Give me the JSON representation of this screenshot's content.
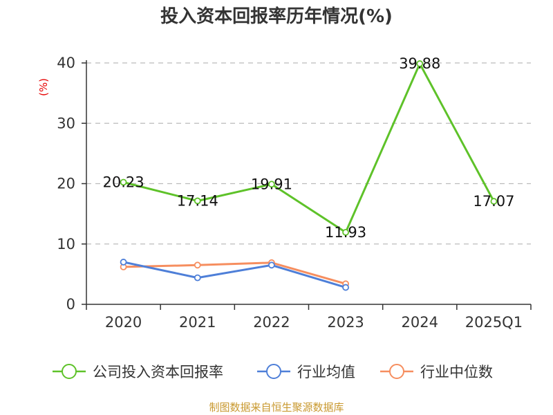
{
  "chart_data": {
    "type": "line",
    "title": "投入资本回报率历年情况(%)",
    "ylabel": "(%)",
    "xlabel": "",
    "categories": [
      "2020",
      "2021",
      "2022",
      "2023",
      "2024",
      "2025Q1"
    ],
    "ylim": [
      0,
      40
    ],
    "yticks": [
      0,
      10,
      20,
      30,
      40
    ],
    "grid": true,
    "legend_position": "bottom",
    "series": [
      {
        "name": "公司投入资本回报率",
        "color": "#5ec229",
        "values": [
          20.23,
          17.14,
          19.91,
          11.93,
          39.88,
          17.07
        ],
        "labels": [
          "20.23",
          "17.14",
          "19.91",
          "11.93",
          "39.88",
          "17.07"
        ]
      },
      {
        "name": "行业均值",
        "color": "#4e7fd8",
        "values": [
          7.0,
          4.4,
          6.5,
          2.8,
          null,
          null
        ]
      },
      {
        "name": "行业中位数",
        "color": "#f68e5f",
        "values": [
          6.2,
          6.5,
          6.9,
          3.4,
          null,
          null
        ]
      }
    ]
  },
  "source": "制图数据来自恒生聚源数据库"
}
